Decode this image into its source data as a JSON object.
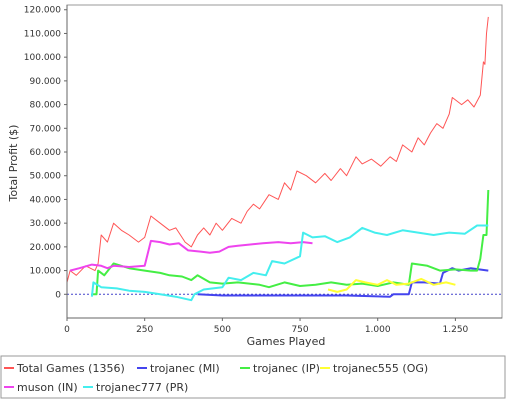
{
  "chart_data": {
    "type": "line",
    "xlabel": "Games Played",
    "ylabel": "Total Profit ($)",
    "xlim": [
      0,
      1400
    ],
    "ylim": [
      -10000,
      122000
    ],
    "xticks": [
      {
        "value": 0,
        "label": "0"
      },
      {
        "value": 250,
        "label": "250"
      },
      {
        "value": 500,
        "label": "500"
      },
      {
        "value": 750,
        "label": "750"
      },
      {
        "value": 1000,
        "label": "1.000"
      },
      {
        "value": 1250,
        "label": "1.250"
      }
    ],
    "yticks": [
      {
        "value": 0,
        "label": "0"
      },
      {
        "value": 10000,
        "label": "10.000"
      },
      {
        "value": 20000,
        "label": "20.000"
      },
      {
        "value": 30000,
        "label": "30.000"
      },
      {
        "value": 40000,
        "label": "40.000"
      },
      {
        "value": 50000,
        "label": "50.000"
      },
      {
        "value": 60000,
        "label": "60.000"
      },
      {
        "value": 70000,
        "label": "70.000"
      },
      {
        "value": 80000,
        "label": "80.000"
      },
      {
        "value": 90000,
        "label": "90.000"
      },
      {
        "value": 100000,
        "label": "100.000"
      },
      {
        "value": 110000,
        "label": "110.000"
      },
      {
        "value": 120000,
        "label": "120.000"
      }
    ],
    "zero_line": true,
    "legend_position": "bottom",
    "series": [
      {
        "name": "Total Games (1356)",
        "color": "#ff5555",
        "points": [
          [
            0,
            5000
          ],
          [
            10,
            10000
          ],
          [
            30,
            8000
          ],
          [
            60,
            12000
          ],
          [
            90,
            10000
          ],
          [
            100,
            13000
          ],
          [
            110,
            25000
          ],
          [
            130,
            22000
          ],
          [
            150,
            30000
          ],
          [
            175,
            27000
          ],
          [
            200,
            25000
          ],
          [
            230,
            22000
          ],
          [
            250,
            24000
          ],
          [
            270,
            33000
          ],
          [
            300,
            30000
          ],
          [
            330,
            27000
          ],
          [
            350,
            28000
          ],
          [
            380,
            22000
          ],
          [
            400,
            20000
          ],
          [
            420,
            25000
          ],
          [
            440,
            28000
          ],
          [
            460,
            25000
          ],
          [
            480,
            30000
          ],
          [
            500,
            27000
          ],
          [
            530,
            32000
          ],
          [
            560,
            30000
          ],
          [
            580,
            35000
          ],
          [
            600,
            38000
          ],
          [
            620,
            36000
          ],
          [
            650,
            42000
          ],
          [
            680,
            40000
          ],
          [
            700,
            47000
          ],
          [
            720,
            44000
          ],
          [
            740,
            52000
          ],
          [
            770,
            50000
          ],
          [
            800,
            47000
          ],
          [
            830,
            51000
          ],
          [
            850,
            48000
          ],
          [
            880,
            53000
          ],
          [
            900,
            50000
          ],
          [
            930,
            58000
          ],
          [
            950,
            55000
          ],
          [
            980,
            57000
          ],
          [
            1010,
            54000
          ],
          [
            1040,
            58000
          ],
          [
            1060,
            56000
          ],
          [
            1080,
            63000
          ],
          [
            1110,
            60000
          ],
          [
            1130,
            66000
          ],
          [
            1150,
            63000
          ],
          [
            1170,
            68000
          ],
          [
            1190,
            72000
          ],
          [
            1210,
            70000
          ],
          [
            1230,
            76000
          ],
          [
            1240,
            83000
          ],
          [
            1270,
            80000
          ],
          [
            1290,
            82000
          ],
          [
            1310,
            79000
          ],
          [
            1330,
            84000
          ],
          [
            1340,
            98000
          ],
          [
            1345,
            97000
          ],
          [
            1350,
            110000
          ],
          [
            1356,
            117000
          ]
        ]
      },
      {
        "name": "trojanec (MI)",
        "color": "#4444ee",
        "points": [
          [
            420,
            0
          ],
          [
            500,
            -500
          ],
          [
            700,
            -500
          ],
          [
            900,
            -500
          ],
          [
            1040,
            -1000
          ],
          [
            1050,
            0
          ],
          [
            1100,
            0
          ],
          [
            1110,
            5000
          ],
          [
            1150,
            5000
          ],
          [
            1200,
            4500
          ],
          [
            1210,
            9000
          ],
          [
            1240,
            11000
          ],
          [
            1260,
            10000
          ],
          [
            1300,
            11000
          ],
          [
            1356,
            10000
          ]
        ]
      },
      {
        "name": "trojanec (IP)",
        "color": "#44ee44",
        "points": [
          [
            80,
            0
          ],
          [
            95,
            0
          ],
          [
            100,
            10000
          ],
          [
            120,
            8000
          ],
          [
            150,
            13000
          ],
          [
            200,
            11000
          ],
          [
            250,
            10000
          ],
          [
            300,
            9000
          ],
          [
            330,
            8000
          ],
          [
            370,
            7500
          ],
          [
            400,
            6000
          ],
          [
            420,
            8000
          ],
          [
            460,
            5000
          ],
          [
            500,
            4500
          ],
          [
            550,
            5000
          ],
          [
            620,
            4000
          ],
          [
            650,
            3000
          ],
          [
            700,
            5000
          ],
          [
            750,
            3500
          ],
          [
            800,
            4000
          ],
          [
            850,
            5000
          ],
          [
            900,
            4000
          ],
          [
            950,
            4500
          ],
          [
            1000,
            3500
          ],
          [
            1050,
            5000
          ],
          [
            1100,
            4000
          ],
          [
            1110,
            13000
          ],
          [
            1160,
            12000
          ],
          [
            1200,
            10000
          ],
          [
            1250,
            10500
          ],
          [
            1300,
            10000
          ],
          [
            1320,
            10000
          ],
          [
            1330,
            15000
          ],
          [
            1340,
            25000
          ],
          [
            1350,
            25000
          ],
          [
            1356,
            44000
          ]
        ]
      },
      {
        "name": "trojanec555 (OG)",
        "color": "#ffff33",
        "points": [
          [
            840,
            2000
          ],
          [
            870,
            1000
          ],
          [
            900,
            2000
          ],
          [
            930,
            6000
          ],
          [
            960,
            5000
          ],
          [
            1000,
            4000
          ],
          [
            1030,
            6000
          ],
          [
            1060,
            4000
          ],
          [
            1100,
            4500
          ],
          [
            1140,
            6500
          ],
          [
            1180,
            4000
          ],
          [
            1220,
            5000
          ],
          [
            1250,
            4000
          ]
        ]
      },
      {
        "name": "muson (IN)",
        "color": "#ee44ee",
        "points": [
          [
            10,
            10000
          ],
          [
            40,
            11000
          ],
          [
            80,
            12500
          ],
          [
            110,
            12000
          ],
          [
            130,
            11000
          ],
          [
            150,
            12000
          ],
          [
            200,
            11500
          ],
          [
            250,
            12000
          ],
          [
            270,
            22500
          ],
          [
            300,
            22000
          ],
          [
            330,
            21000
          ],
          [
            360,
            21500
          ],
          [
            390,
            18500
          ],
          [
            430,
            18000
          ],
          [
            460,
            17500
          ],
          [
            490,
            18000
          ],
          [
            520,
            20000
          ],
          [
            550,
            20500
          ],
          [
            590,
            21000
          ],
          [
            630,
            21500
          ],
          [
            680,
            22000
          ],
          [
            720,
            21500
          ],
          [
            760,
            22000
          ],
          [
            790,
            21500
          ]
        ]
      },
      {
        "name": "trojanec777 (PR)",
        "color": "#44eeee",
        "points": [
          [
            80,
            -1000
          ],
          [
            85,
            5000
          ],
          [
            110,
            3000
          ],
          [
            160,
            2500
          ],
          [
            200,
            1500
          ],
          [
            250,
            1000
          ],
          [
            300,
            0
          ],
          [
            350,
            -1000
          ],
          [
            400,
            -2500
          ],
          [
            410,
            0
          ],
          [
            440,
            2000
          ],
          [
            500,
            3000
          ],
          [
            520,
            7000
          ],
          [
            560,
            6000
          ],
          [
            600,
            9000
          ],
          [
            640,
            8000
          ],
          [
            660,
            14000
          ],
          [
            700,
            13000
          ],
          [
            750,
            16000
          ],
          [
            760,
            26000
          ],
          [
            790,
            24000
          ],
          [
            830,
            24500
          ],
          [
            870,
            22000
          ],
          [
            910,
            24000
          ],
          [
            950,
            28000
          ],
          [
            990,
            26000
          ],
          [
            1030,
            25000
          ],
          [
            1080,
            27000
          ],
          [
            1130,
            26000
          ],
          [
            1180,
            25000
          ],
          [
            1230,
            26000
          ],
          [
            1280,
            25500
          ],
          [
            1320,
            29000
          ],
          [
            1340,
            29000
          ],
          [
            1356,
            29000
          ]
        ]
      }
    ]
  }
}
